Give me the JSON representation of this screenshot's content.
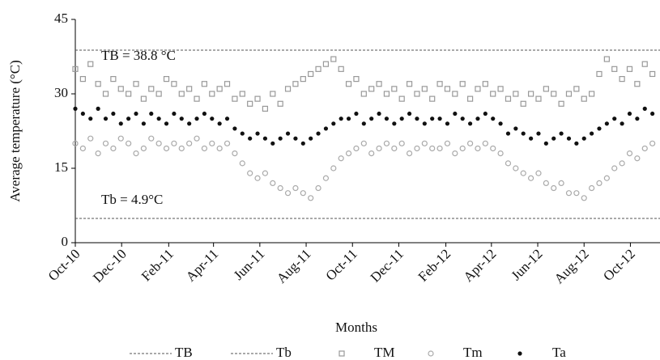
{
  "chart_data": {
    "type": "scatter",
    "ylabel": "Average temperature (°C)",
    "xlabel": "Months",
    "xlim": [
      0,
      770
    ],
    "ylim": [
      0,
      45
    ],
    "yticks": [
      0,
      15,
      30,
      45
    ],
    "xticks": [
      {
        "value": 0,
        "label": "Oct-10"
      },
      {
        "value": 61,
        "label": "Dec-10"
      },
      {
        "value": 123,
        "label": "Feb-11"
      },
      {
        "value": 182,
        "label": "Apr-11"
      },
      {
        "value": 243,
        "label": "Jun-11"
      },
      {
        "value": 304,
        "label": "Aug-11"
      },
      {
        "value": 365,
        "label": "Oct-11"
      },
      {
        "value": 426,
        "label": "Dec-11"
      },
      {
        "value": 488,
        "label": "Feb-12"
      },
      {
        "value": 548,
        "label": "Apr-12"
      },
      {
        "value": 609,
        "label": "Jun-12"
      },
      {
        "value": 670,
        "label": "Aug-12"
      },
      {
        "value": 731,
        "label": "Oct-12"
      }
    ],
    "reference_lines": [
      {
        "name": "TB",
        "value": 38.8,
        "label": "TB = 38.8 °C",
        "color": "#555555"
      },
      {
        "name": "Tb",
        "value": 4.9,
        "label": "Tb = 4.9°C",
        "color": "#555555"
      }
    ],
    "x": [
      0,
      10,
      20,
      30,
      40,
      50,
      60,
      70,
      80,
      90,
      100,
      110,
      120,
      130,
      140,
      150,
      160,
      170,
      180,
      190,
      200,
      210,
      220,
      230,
      240,
      250,
      260,
      270,
      280,
      290,
      300,
      310,
      320,
      330,
      340,
      350,
      360,
      370,
      380,
      390,
      400,
      410,
      420,
      430,
      440,
      450,
      460,
      470,
      480,
      490,
      500,
      510,
      520,
      530,
      540,
      550,
      560,
      570,
      580,
      590,
      600,
      610,
      620,
      630,
      640,
      650,
      660,
      670,
      680,
      690,
      700,
      710,
      720,
      730,
      740,
      750,
      760
    ],
    "series": [
      {
        "name": "TM",
        "color": "#999999",
        "marker": "square",
        "values": [
          35,
          33,
          36,
          32,
          30,
          33,
          31,
          30,
          32,
          29,
          31,
          30,
          33,
          32,
          30,
          31,
          29,
          32,
          30,
          31,
          32,
          29,
          30,
          28,
          29,
          27,
          30,
          28,
          31,
          32,
          33,
          34,
          35,
          36,
          37,
          35,
          32,
          33,
          30,
          31,
          32,
          30,
          31,
          29,
          32,
          30,
          31,
          29,
          32,
          31,
          30,
          32,
          29,
          31,
          32,
          30,
          31,
          29,
          30,
          28,
          30,
          29,
          31,
          30,
          28,
          30,
          31,
          29,
          30,
          34,
          37,
          35,
          33,
          35,
          32,
          36,
          34
        ]
      },
      {
        "name": "Tm",
        "color": "#aaaaaa",
        "marker": "circle",
        "values": [
          20,
          19,
          21,
          18,
          20,
          19,
          21,
          20,
          18,
          19,
          21,
          20,
          19,
          20,
          19,
          20,
          21,
          19,
          20,
          19,
          20,
          18,
          16,
          14,
          13,
          14,
          12,
          11,
          10,
          11,
          10,
          9,
          11,
          13,
          15,
          17,
          18,
          19,
          20,
          18,
          19,
          20,
          19,
          20,
          18,
          19,
          20,
          19,
          19,
          20,
          18,
          19,
          20,
          19,
          20,
          19,
          18,
          16,
          15,
          14,
          13,
          14,
          12,
          11,
          12,
          10,
          10,
          9,
          11,
          12,
          13,
          15,
          16,
          18,
          17,
          19,
          20
        ]
      },
      {
        "name": "Ta",
        "color": "#111111",
        "marker": "dot",
        "values": [
          27,
          26,
          25,
          27,
          25,
          26,
          24,
          25,
          26,
          24,
          26,
          25,
          24,
          26,
          25,
          24,
          25,
          26,
          25,
          24,
          25,
          23,
          22,
          21,
          22,
          21,
          20,
          21,
          22,
          21,
          20,
          21,
          22,
          23,
          24,
          25,
          25,
          26,
          24,
          25,
          26,
          25,
          24,
          25,
          26,
          25,
          24,
          25,
          25,
          24,
          26,
          25,
          24,
          25,
          26,
          25,
          24,
          22,
          23,
          22,
          21,
          22,
          20,
          21,
          22,
          21,
          20,
          21,
          22,
          23,
          24,
          25,
          24,
          26,
          25,
          27,
          26
        ]
      }
    ]
  }
}
